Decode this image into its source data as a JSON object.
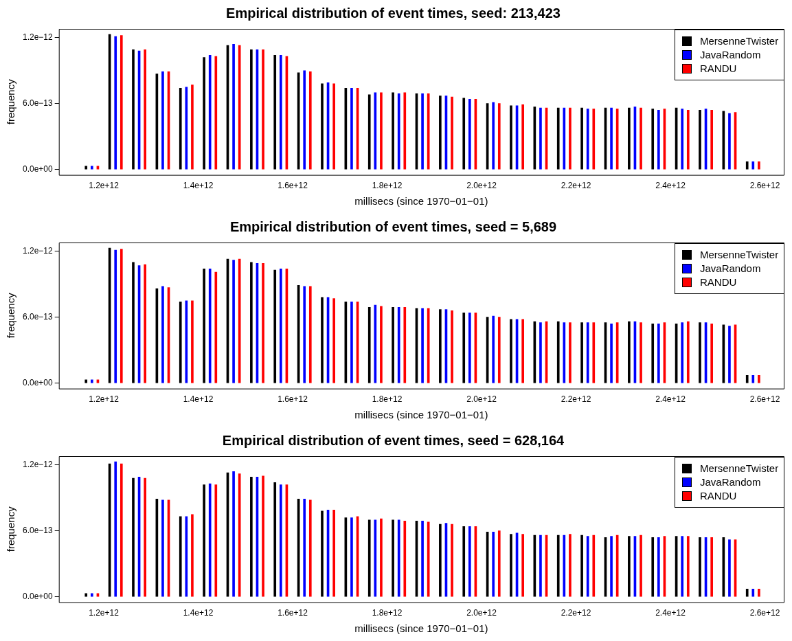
{
  "chart_data": [
    {
      "type": "bar",
      "title": "Empirical distribution of event times, seed: 213,423",
      "xlabel": "millisecs (since 1970−01−01)",
      "ylabel": "frequency",
      "legend": "top right",
      "grid": false,
      "xlim": [
        1105000000000.0,
        2640000000000.0
      ],
      "ylim": [
        -5e-14,
        1.28e-12
      ],
      "xticks": [
        {
          "value": 1200000000000.0,
          "label": "1.2e+12"
        },
        {
          "value": 1400000000000.0,
          "label": "1.4e+12"
        },
        {
          "value": 1600000000000.0,
          "label": "1.6e+12"
        },
        {
          "value": 1800000000000.0,
          "label": "1.8e+12"
        },
        {
          "value": 2000000000000.0,
          "label": "2.0e+12"
        },
        {
          "value": 2200000000000.0,
          "label": "2.2e+12"
        },
        {
          "value": 2400000000000.0,
          "label": "2.4e+12"
        },
        {
          "value": 2600000000000.0,
          "label": "2.6e+12"
        }
      ],
      "yticks": [
        {
          "value": 0,
          "label": "0.0e+00"
        },
        {
          "value": 6e-13,
          "label": "6.0e−13"
        },
        {
          "value": 1.2e-12,
          "label": "1.2e−12"
        }
      ],
      "series": [
        {
          "name": "MersenneTwister",
          "color": "#000000",
          "x": [
            1162500000000.0,
            1212500000000.0,
            1262500000000.0,
            1312500000000.0,
            1362500000000.0,
            1412500000000.0,
            1462500000000.0,
            1512500000000.0,
            1562500000000.0,
            1612500000000.0,
            1662500000000.0,
            1712500000000.0,
            1762500000000.0,
            1812500000000.0,
            1862500000000.0,
            1912500000000.0,
            1962500000000.0,
            2012500000000.0,
            2062500000000.0,
            2112500000000.0,
            2162500000000.0,
            2212500000000.0,
            2262500000000.0,
            2312500000000.0,
            2362500000000.0,
            2412500000000.0,
            2462500000000.0,
            2512500000000.0,
            2562500000000.0
          ],
          "values": [
            3e-14,
            1.23e-12,
            1.09e-12,
            8.7e-13,
            7.4e-13,
            1.02e-12,
            1.13e-12,
            1.09e-12,
            1.04e-12,
            8.8e-13,
            7.8e-13,
            7.4e-13,
            6.8e-13,
            7e-13,
            6.9e-13,
            6.7e-13,
            6.5e-13,
            6e-13,
            5.8e-13,
            5.7e-13,
            5.6e-13,
            5.6e-13,
            5.6e-13,
            5.6e-13,
            5.5e-13,
            5.6e-13,
            5.4e-13,
            5.3e-13,
            7e-14
          ]
        },
        {
          "name": "JavaRandom",
          "color": "#0000ff",
          "x": [
            1175000000000.0,
            1225000000000.0,
            1275000000000.0,
            1325000000000.0,
            1375000000000.0,
            1425000000000.0,
            1475000000000.0,
            1525000000000.0,
            1575000000000.0,
            1625000000000.0,
            1675000000000.0,
            1725000000000.0,
            1775000000000.0,
            1825000000000.0,
            1875000000000.0,
            1925000000000.0,
            1975000000000.0,
            2025000000000.0,
            2075000000000.0,
            2125000000000.0,
            2175000000000.0,
            2225000000000.0,
            2275000000000.0,
            2325000000000.0,
            2375000000000.0,
            2425000000000.0,
            2475000000000.0,
            2525000000000.0,
            2575000000000.0
          ],
          "values": [
            3e-14,
            1.21e-12,
            1.08e-12,
            8.9e-13,
            7.5e-13,
            1.04e-12,
            1.14e-12,
            1.09e-12,
            1.04e-12,
            9e-13,
            7.9e-13,
            7.4e-13,
            7e-13,
            6.9e-13,
            6.9e-13,
            6.7e-13,
            6.4e-13,
            6.1e-13,
            5.8e-13,
            5.6e-13,
            5.6e-13,
            5.5e-13,
            5.6e-13,
            5.7e-13,
            5.4e-13,
            5.5e-13,
            5.5e-13,
            5.1e-13,
            7e-14
          ]
        },
        {
          "name": "RANDU",
          "color": "#ff0000",
          "x": [
            1187500000000.0,
            1237500000000.0,
            1287500000000.0,
            1337500000000.0,
            1387500000000.0,
            1437500000000.0,
            1487500000000.0,
            1537500000000.0,
            1587500000000.0,
            1637500000000.0,
            1687500000000.0,
            1737500000000.0,
            1787500000000.0,
            1837500000000.0,
            1887500000000.0,
            1937500000000.0,
            1987500000000.0,
            2037500000000.0,
            2087500000000.0,
            2137500000000.0,
            2187500000000.0,
            2237500000000.0,
            2287500000000.0,
            2337500000000.0,
            2387500000000.0,
            2437500000000.0,
            2487500000000.0,
            2537500000000.0,
            2587500000000.0
          ],
          "values": [
            3e-14,
            1.22e-12,
            1.09e-12,
            8.9e-13,
            7.7e-13,
            1.03e-12,
            1.13e-12,
            1.09e-12,
            1.03e-12,
            8.9e-13,
            7.8e-13,
            7.4e-13,
            7e-13,
            7e-13,
            6.9e-13,
            6.6e-13,
            6.4e-13,
            6e-13,
            5.9e-13,
            5.6e-13,
            5.6e-13,
            5.5e-13,
            5.5e-13,
            5.6e-13,
            5.5e-13,
            5.4e-13,
            5.4e-13,
            5.2e-13,
            7e-14
          ]
        }
      ]
    },
    {
      "type": "bar",
      "title": "Empirical distribution of event times, seed = 5,689",
      "xlabel": "millisecs (since 1970−01−01)",
      "ylabel": "frequency",
      "legend": "top right",
      "grid": false,
      "xlim": [
        1105000000000.0,
        2640000000000.0
      ],
      "ylim": [
        -5e-14,
        1.28e-12
      ],
      "xticks": [
        {
          "value": 1200000000000.0,
          "label": "1.2e+12"
        },
        {
          "value": 1400000000000.0,
          "label": "1.4e+12"
        },
        {
          "value": 1600000000000.0,
          "label": "1.6e+12"
        },
        {
          "value": 1800000000000.0,
          "label": "1.8e+12"
        },
        {
          "value": 2000000000000.0,
          "label": "2.0e+12"
        },
        {
          "value": 2200000000000.0,
          "label": "2.2e+12"
        },
        {
          "value": 2400000000000.0,
          "label": "2.4e+12"
        },
        {
          "value": 2600000000000.0,
          "label": "2.6e+12"
        }
      ],
      "yticks": [
        {
          "value": 0,
          "label": "0.0e+00"
        },
        {
          "value": 6e-13,
          "label": "6.0e−13"
        },
        {
          "value": 1.2e-12,
          "label": "1.2e−12"
        }
      ],
      "series": [
        {
          "name": "MersenneTwister",
          "color": "#000000",
          "x": [
            1162500000000.0,
            1212500000000.0,
            1262500000000.0,
            1312500000000.0,
            1362500000000.0,
            1412500000000.0,
            1462500000000.0,
            1512500000000.0,
            1562500000000.0,
            1612500000000.0,
            1662500000000.0,
            1712500000000.0,
            1762500000000.0,
            1812500000000.0,
            1862500000000.0,
            1912500000000.0,
            1962500000000.0,
            2012500000000.0,
            2062500000000.0,
            2112500000000.0,
            2162500000000.0,
            2212500000000.0,
            2262500000000.0,
            2312500000000.0,
            2362500000000.0,
            2412500000000.0,
            2462500000000.0,
            2512500000000.0,
            2562500000000.0
          ],
          "values": [
            3e-14,
            1.23e-12,
            1.1e-12,
            8.6e-13,
            7.4e-13,
            1.04e-12,
            1.13e-12,
            1.1e-12,
            1.03e-12,
            8.9e-13,
            7.8e-13,
            7.4e-13,
            6.9e-13,
            6.9e-13,
            6.8e-13,
            6.7e-13,
            6.4e-13,
            6e-13,
            5.8e-13,
            5.6e-13,
            5.6e-13,
            5.5e-13,
            5.5e-13,
            5.6e-13,
            5.4e-13,
            5.4e-13,
            5.5e-13,
            5.3e-13,
            7e-14
          ]
        },
        {
          "name": "JavaRandom",
          "color": "#0000ff",
          "x": [
            1175000000000.0,
            1225000000000.0,
            1275000000000.0,
            1325000000000.0,
            1375000000000.0,
            1425000000000.0,
            1475000000000.0,
            1525000000000.0,
            1575000000000.0,
            1625000000000.0,
            1675000000000.0,
            1725000000000.0,
            1775000000000.0,
            1825000000000.0,
            1875000000000.0,
            1925000000000.0,
            1975000000000.0,
            2025000000000.0,
            2075000000000.0,
            2125000000000.0,
            2175000000000.0,
            2225000000000.0,
            2275000000000.0,
            2325000000000.0,
            2375000000000.0,
            2425000000000.0,
            2475000000000.0,
            2525000000000.0,
            2575000000000.0
          ],
          "values": [
            3e-14,
            1.21e-12,
            1.07e-12,
            8.8e-13,
            7.5e-13,
            1.04e-12,
            1.12e-12,
            1.09e-12,
            1.04e-12,
            8.8e-13,
            7.8e-13,
            7.4e-13,
            7.1e-13,
            6.9e-13,
            6.8e-13,
            6.7e-13,
            6.4e-13,
            6.1e-13,
            5.8e-13,
            5.5e-13,
            5.5e-13,
            5.5e-13,
            5.4e-13,
            5.6e-13,
            5.4e-13,
            5.5e-13,
            5.5e-13,
            5.2e-13,
            7e-14
          ]
        },
        {
          "name": "RANDU",
          "color": "#ff0000",
          "x": [
            1187500000000.0,
            1237500000000.0,
            1287500000000.0,
            1337500000000.0,
            1387500000000.0,
            1437500000000.0,
            1487500000000.0,
            1537500000000.0,
            1587500000000.0,
            1637500000000.0,
            1687500000000.0,
            1737500000000.0,
            1787500000000.0,
            1837500000000.0,
            1887500000000.0,
            1937500000000.0,
            1987500000000.0,
            2037500000000.0,
            2087500000000.0,
            2137500000000.0,
            2187500000000.0,
            2237500000000.0,
            2287500000000.0,
            2337500000000.0,
            2387500000000.0,
            2437500000000.0,
            2487500000000.0,
            2537500000000.0,
            2587500000000.0
          ],
          "values": [
            3e-14,
            1.22e-12,
            1.08e-12,
            8.7e-13,
            7.5e-13,
            1.01e-12,
            1.13e-12,
            1.09e-12,
            1.04e-12,
            8.8e-13,
            7.7e-13,
            7.4e-13,
            7e-13,
            6.9e-13,
            6.8e-13,
            6.6e-13,
            6.4e-13,
            6e-13,
            5.8e-13,
            5.6e-13,
            5.5e-13,
            5.5e-13,
            5.5e-13,
            5.5e-13,
            5.5e-13,
            5.6e-13,
            5.4e-13,
            5.3e-13,
            7e-14
          ]
        }
      ]
    },
    {
      "type": "bar",
      "title": "Empirical distribution of event times, seed = 628,164",
      "xlabel": "millisecs (since 1970−01−01)",
      "ylabel": "frequency",
      "legend": "top right",
      "grid": false,
      "xlim": [
        1105000000000.0,
        2640000000000.0
      ],
      "ylim": [
        -5e-14,
        1.28e-12
      ],
      "xticks": [
        {
          "value": 1200000000000.0,
          "label": "1.2e+12"
        },
        {
          "value": 1400000000000.0,
          "label": "1.4e+12"
        },
        {
          "value": 1600000000000.0,
          "label": "1.6e+12"
        },
        {
          "value": 1800000000000.0,
          "label": "1.8e+12"
        },
        {
          "value": 2000000000000.0,
          "label": "2.0e+12"
        },
        {
          "value": 2200000000000.0,
          "label": "2.2e+12"
        },
        {
          "value": 2400000000000.0,
          "label": "2.4e+12"
        },
        {
          "value": 2600000000000.0,
          "label": "2.6e+12"
        }
      ],
      "yticks": [
        {
          "value": 0,
          "label": "0.0e+00"
        },
        {
          "value": 6e-13,
          "label": "6.0e−13"
        },
        {
          "value": 1.2e-12,
          "label": "1.2e−12"
        }
      ],
      "series": [
        {
          "name": "MersenneTwister",
          "color": "#000000",
          "x": [
            1162500000000.0,
            1212500000000.0,
            1262500000000.0,
            1312500000000.0,
            1362500000000.0,
            1412500000000.0,
            1462500000000.0,
            1512500000000.0,
            1562500000000.0,
            1612500000000.0,
            1662500000000.0,
            1712500000000.0,
            1762500000000.0,
            1812500000000.0,
            1862500000000.0,
            1912500000000.0,
            1962500000000.0,
            2012500000000.0,
            2062500000000.0,
            2112500000000.0,
            2162500000000.0,
            2212500000000.0,
            2262500000000.0,
            2312500000000.0,
            2362500000000.0,
            2412500000000.0,
            2462500000000.0,
            2512500000000.0,
            2562500000000.0
          ],
          "values": [
            3e-14,
            1.21e-12,
            1.08e-12,
            8.9e-13,
            7.3e-13,
            1.02e-12,
            1.13e-12,
            1.09e-12,
            1.04e-12,
            8.9e-13,
            7.8e-13,
            7.2e-13,
            7e-13,
            7e-13,
            6.9e-13,
            6.6e-13,
            6.4e-13,
            5.9e-13,
            5.7e-13,
            5.6e-13,
            5.6e-13,
            5.6e-13,
            5.4e-13,
            5.5e-13,
            5.4e-13,
            5.5e-13,
            5.4e-13,
            5.4e-13,
            7e-14
          ]
        },
        {
          "name": "JavaRandom",
          "color": "#0000ff",
          "x": [
            1175000000000.0,
            1225000000000.0,
            1275000000000.0,
            1325000000000.0,
            1375000000000.0,
            1425000000000.0,
            1475000000000.0,
            1525000000000.0,
            1575000000000.0,
            1625000000000.0,
            1675000000000.0,
            1725000000000.0,
            1775000000000.0,
            1825000000000.0,
            1875000000000.0,
            1925000000000.0,
            1975000000000.0,
            2025000000000.0,
            2075000000000.0,
            2125000000000.0,
            2175000000000.0,
            2225000000000.0,
            2275000000000.0,
            2325000000000.0,
            2375000000000.0,
            2425000000000.0,
            2475000000000.0,
            2525000000000.0,
            2575000000000.0
          ],
          "values": [
            3e-14,
            1.23e-12,
            1.09e-12,
            8.8e-13,
            7.3e-13,
            1.03e-12,
            1.14e-12,
            1.09e-12,
            1.02e-12,
            8.9e-13,
            7.9e-13,
            7.2e-13,
            7e-13,
            7e-13,
            6.9e-13,
            6.7e-13,
            6.4e-13,
            5.9e-13,
            5.8e-13,
            5.6e-13,
            5.6e-13,
            5.5e-13,
            5.5e-13,
            5.5e-13,
            5.4e-13,
            5.5e-13,
            5.4e-13,
            5.2e-13,
            7e-14
          ]
        },
        {
          "name": "RANDU",
          "color": "#ff0000",
          "x": [
            1187500000000.0,
            1237500000000.0,
            1287500000000.0,
            1337500000000.0,
            1387500000000.0,
            1437500000000.0,
            1487500000000.0,
            1537500000000.0,
            1587500000000.0,
            1637500000000.0,
            1687500000000.0,
            1737500000000.0,
            1787500000000.0,
            1837500000000.0,
            1887500000000.0,
            1937500000000.0,
            1987500000000.0,
            2037500000000.0,
            2087500000000.0,
            2137500000000.0,
            2187500000000.0,
            2237500000000.0,
            2287500000000.0,
            2337500000000.0,
            2387500000000.0,
            2437500000000.0,
            2487500000000.0,
            2537500000000.0,
            2587500000000.0
          ],
          "values": [
            3e-14,
            1.21e-12,
            1.08e-12,
            8.8e-13,
            7.5e-13,
            1.02e-12,
            1.12e-12,
            1.1e-12,
            1.02e-12,
            8.8e-13,
            7.9e-13,
            7.3e-13,
            7.1e-13,
            6.9e-13,
            6.8e-13,
            6.6e-13,
            6.4e-13,
            6e-13,
            5.7e-13,
            5.6e-13,
            5.7e-13,
            5.6e-13,
            5.6e-13,
            5.6e-13,
            5.5e-13,
            5.5e-13,
            5.4e-13,
            5.2e-13,
            7e-14
          ]
        }
      ]
    }
  ]
}
